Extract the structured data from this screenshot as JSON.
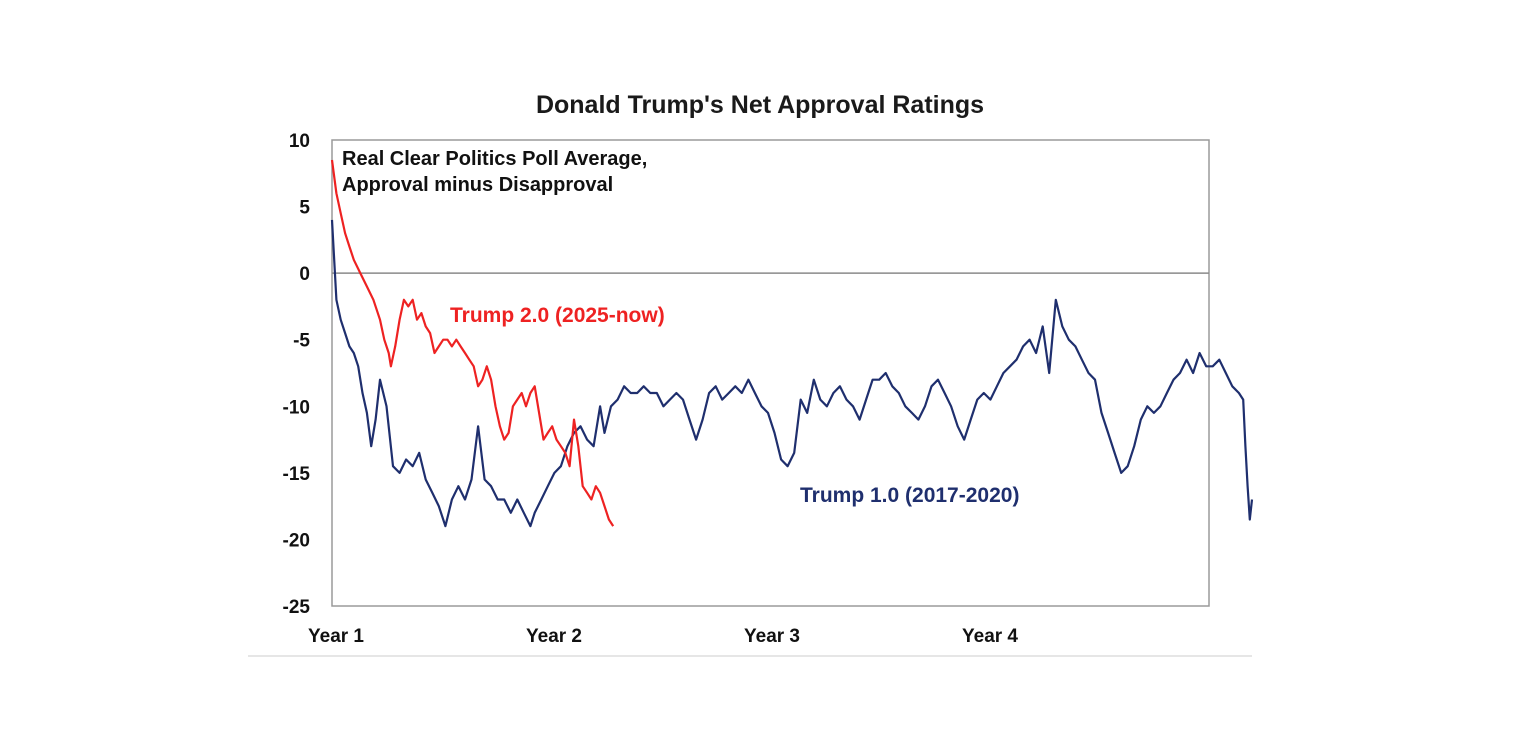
{
  "chart_data": {
    "type": "line",
    "title": "Donald Trump's Net Approval Ratings",
    "annotation_lines": [
      "Real Clear Politics Poll Average,",
      "Approval minus Disapproval"
    ],
    "x_ticks": [
      {
        "label": "Year 1",
        "x": 0
      },
      {
        "label": "Year 2",
        "x": 1
      },
      {
        "label": "Year 3",
        "x": 2
      },
      {
        "label": "Year 4",
        "x": 3
      }
    ],
    "xlim": [
      0,
      4
    ],
    "ylim": [
      -25,
      10
    ],
    "y_ticks": [
      10,
      5,
      0,
      -5,
      -10,
      -15,
      -20,
      -25
    ],
    "zero_line": true,
    "grid": false,
    "series": [
      {
        "name": "Trump 1.0 (2017-2020)",
        "color": "#1f2f6e",
        "points": [
          [
            0.0,
            4.0
          ],
          [
            0.02,
            -2.0
          ],
          [
            0.04,
            -3.5
          ],
          [
            0.06,
            -4.5
          ],
          [
            0.08,
            -5.5
          ],
          [
            0.1,
            -6.0
          ],
          [
            0.12,
            -7.0
          ],
          [
            0.14,
            -9.0
          ],
          [
            0.16,
            -10.5
          ],
          [
            0.18,
            -13.0
          ],
          [
            0.2,
            -11.0
          ],
          [
            0.22,
            -8.0
          ],
          [
            0.25,
            -10.0
          ],
          [
            0.28,
            -14.5
          ],
          [
            0.31,
            -15.0
          ],
          [
            0.34,
            -14.0
          ],
          [
            0.37,
            -14.5
          ],
          [
            0.4,
            -13.5
          ],
          [
            0.43,
            -15.5
          ],
          [
            0.46,
            -16.5
          ],
          [
            0.49,
            -17.5
          ],
          [
            0.52,
            -19.0
          ],
          [
            0.55,
            -17.0
          ],
          [
            0.58,
            -16.0
          ],
          [
            0.61,
            -17.0
          ],
          [
            0.64,
            -15.5
          ],
          [
            0.67,
            -11.5
          ],
          [
            0.7,
            -15.5
          ],
          [
            0.73,
            -16.0
          ],
          [
            0.76,
            -17.0
          ],
          [
            0.79,
            -17.0
          ],
          [
            0.82,
            -18.0
          ],
          [
            0.85,
            -17.0
          ],
          [
            0.88,
            -18.0
          ],
          [
            0.91,
            -19.0
          ],
          [
            0.93,
            -18.0
          ],
          [
            0.96,
            -17.0
          ],
          [
            0.99,
            -16.0
          ],
          [
            1.02,
            -15.0
          ],
          [
            1.05,
            -14.5
          ],
          [
            1.08,
            -13.0
          ],
          [
            1.11,
            -12.0
          ],
          [
            1.14,
            -11.5
          ],
          [
            1.17,
            -12.5
          ],
          [
            1.2,
            -13.0
          ],
          [
            1.23,
            -10.0
          ],
          [
            1.25,
            -12.0
          ],
          [
            1.28,
            -10.0
          ],
          [
            1.31,
            -9.5
          ],
          [
            1.34,
            -8.5
          ],
          [
            1.37,
            -9.0
          ],
          [
            1.4,
            -9.0
          ],
          [
            1.43,
            -8.5
          ],
          [
            1.46,
            -9.0
          ],
          [
            1.49,
            -9.0
          ],
          [
            1.52,
            -10.0
          ],
          [
            1.55,
            -9.5
          ],
          [
            1.58,
            -9.0
          ],
          [
            1.61,
            -9.5
          ],
          [
            1.64,
            -11.0
          ],
          [
            1.67,
            -12.5
          ],
          [
            1.7,
            -11.0
          ],
          [
            1.73,
            -9.0
          ],
          [
            1.76,
            -8.5
          ],
          [
            1.79,
            -9.5
          ],
          [
            1.82,
            -9.0
          ],
          [
            1.85,
            -8.5
          ],
          [
            1.88,
            -9.0
          ],
          [
            1.91,
            -8.0
          ],
          [
            1.94,
            -9.0
          ],
          [
            1.97,
            -10.0
          ],
          [
            2.0,
            -10.5
          ],
          [
            2.03,
            -12.0
          ],
          [
            2.06,
            -14.0
          ],
          [
            2.09,
            -14.5
          ],
          [
            2.12,
            -13.5
          ],
          [
            2.15,
            -9.5
          ],
          [
            2.18,
            -10.5
          ],
          [
            2.21,
            -8.0
          ],
          [
            2.24,
            -9.5
          ],
          [
            2.27,
            -10.0
          ],
          [
            2.3,
            -9.0
          ],
          [
            2.33,
            -8.5
          ],
          [
            2.36,
            -9.5
          ],
          [
            2.39,
            -10.0
          ],
          [
            2.42,
            -11.0
          ],
          [
            2.45,
            -9.5
          ],
          [
            2.48,
            -8.0
          ],
          [
            2.51,
            -8.0
          ],
          [
            2.54,
            -7.5
          ],
          [
            2.57,
            -8.5
          ],
          [
            2.6,
            -9.0
          ],
          [
            2.63,
            -10.0
          ],
          [
            2.66,
            -10.5
          ],
          [
            2.69,
            -11.0
          ],
          [
            2.72,
            -10.0
          ],
          [
            2.75,
            -8.5
          ],
          [
            2.78,
            -8.0
          ],
          [
            2.81,
            -9.0
          ],
          [
            2.84,
            -10.0
          ],
          [
            2.87,
            -11.5
          ],
          [
            2.9,
            -12.5
          ],
          [
            2.93,
            -11.0
          ],
          [
            2.96,
            -9.5
          ],
          [
            2.99,
            -9.0
          ],
          [
            3.02,
            -9.5
          ],
          [
            3.05,
            -8.5
          ],
          [
            3.08,
            -7.5
          ],
          [
            3.11,
            -7.0
          ],
          [
            3.14,
            -6.5
          ],
          [
            3.17,
            -5.5
          ],
          [
            3.2,
            -5.0
          ],
          [
            3.23,
            -6.0
          ],
          [
            3.26,
            -4.0
          ],
          [
            3.29,
            -7.5
          ],
          [
            3.32,
            -2.0
          ],
          [
            3.35,
            -4.0
          ],
          [
            3.38,
            -5.0
          ],
          [
            3.41,
            -5.5
          ],
          [
            3.44,
            -6.5
          ],
          [
            3.47,
            -7.5
          ],
          [
            3.5,
            -8.0
          ],
          [
            3.53,
            -10.5
          ],
          [
            3.56,
            -12.0
          ],
          [
            3.59,
            -13.5
          ],
          [
            3.62,
            -15.0
          ],
          [
            3.65,
            -14.5
          ],
          [
            3.68,
            -13.0
          ],
          [
            3.71,
            -11.0
          ],
          [
            3.74,
            -10.0
          ],
          [
            3.77,
            -10.5
          ],
          [
            3.8,
            -10.0
          ],
          [
            3.83,
            -9.0
          ],
          [
            3.86,
            -8.0
          ],
          [
            3.89,
            -7.5
          ],
          [
            3.92,
            -6.5
          ],
          [
            3.95,
            -7.5
          ],
          [
            3.98,
            -6.0
          ],
          [
            4.01,
            -7.0
          ],
          [
            4.04,
            -7.0
          ],
          [
            4.07,
            -6.5
          ],
          [
            4.1,
            -7.5
          ],
          [
            4.13,
            -8.5
          ],
          [
            4.16,
            -9.0
          ],
          [
            4.18,
            -9.5
          ],
          [
            4.19,
            -13.0
          ],
          [
            4.2,
            -16.0
          ],
          [
            4.21,
            -18.5
          ],
          [
            4.22,
            -17.0
          ]
        ]
      },
      {
        "name": "Trump 2.0 (2025-now)",
        "color": "#ee2222",
        "points": [
          [
            0.0,
            8.5
          ],
          [
            0.02,
            6.0
          ],
          [
            0.04,
            4.5
          ],
          [
            0.06,
            3.0
          ],
          [
            0.08,
            2.0
          ],
          [
            0.1,
            1.0
          ],
          [
            0.13,
            0.0
          ],
          [
            0.16,
            -1.0
          ],
          [
            0.19,
            -2.0
          ],
          [
            0.22,
            -3.5
          ],
          [
            0.24,
            -5.0
          ],
          [
            0.26,
            -6.0
          ],
          [
            0.27,
            -7.0
          ],
          [
            0.29,
            -5.5
          ],
          [
            0.31,
            -3.5
          ],
          [
            0.33,
            -2.0
          ],
          [
            0.35,
            -2.5
          ],
          [
            0.37,
            -2.0
          ],
          [
            0.39,
            -3.5
          ],
          [
            0.41,
            -3.0
          ],
          [
            0.43,
            -4.0
          ],
          [
            0.45,
            -4.5
          ],
          [
            0.47,
            -6.0
          ],
          [
            0.49,
            -5.5
          ],
          [
            0.51,
            -5.0
          ],
          [
            0.53,
            -5.0
          ],
          [
            0.55,
            -5.5
          ],
          [
            0.57,
            -5.0
          ],
          [
            0.59,
            -5.5
          ],
          [
            0.61,
            -6.0
          ],
          [
            0.63,
            -6.5
          ],
          [
            0.65,
            -7.0
          ],
          [
            0.67,
            -8.5
          ],
          [
            0.69,
            -8.0
          ],
          [
            0.71,
            -7.0
          ],
          [
            0.73,
            -8.0
          ],
          [
            0.75,
            -10.0
          ],
          [
            0.77,
            -11.5
          ],
          [
            0.79,
            -12.5
          ],
          [
            0.81,
            -12.0
          ],
          [
            0.83,
            -10.0
          ],
          [
            0.85,
            -9.5
          ],
          [
            0.87,
            -9.0
          ],
          [
            0.89,
            -10.0
          ],
          [
            0.91,
            -9.0
          ],
          [
            0.93,
            -8.5
          ],
          [
            0.95,
            -10.5
          ],
          [
            0.97,
            -12.5
          ],
          [
            0.99,
            -12.0
          ],
          [
            1.01,
            -11.5
          ],
          [
            1.03,
            -12.5
          ],
          [
            1.05,
            -13.0
          ],
          [
            1.07,
            -13.5
          ],
          [
            1.09,
            -14.5
          ],
          [
            1.11,
            -11.0
          ],
          [
            1.13,
            -13.0
          ],
          [
            1.15,
            -16.0
          ],
          [
            1.17,
            -16.5
          ],
          [
            1.19,
            -17.0
          ],
          [
            1.21,
            -16.0
          ],
          [
            1.23,
            -16.5
          ],
          [
            1.25,
            -17.5
          ],
          [
            1.27,
            -18.5
          ],
          [
            1.29,
            -19.0
          ]
        ]
      }
    ],
    "series_labels": [
      "Trump 2.0 (2025-now)",
      "Trump 1.0 (2017-2020)"
    ]
  }
}
